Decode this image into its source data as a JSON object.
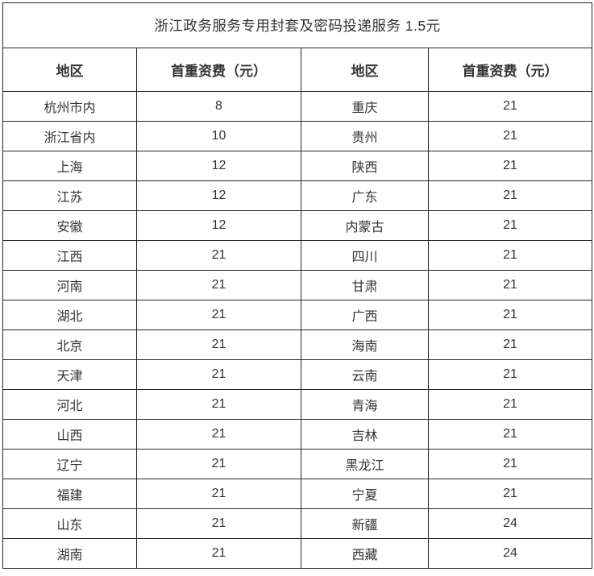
{
  "title": "浙江政务服务专用封套及密码投递服务 1.5元",
  "colors": {
    "text": "#333333",
    "border": "#262626",
    "background": "#ffffff"
  },
  "table": {
    "headers": [
      "地区",
      "首重资费（元）",
      "地区",
      "首重资费（元）"
    ],
    "rows": [
      [
        "杭州市内",
        "8",
        "重庆",
        "21"
      ],
      [
        "浙江省内",
        "10",
        "贵州",
        "21"
      ],
      [
        "上海",
        "12",
        "陕西",
        "21"
      ],
      [
        "江苏",
        "12",
        "广东",
        "21"
      ],
      [
        "安徽",
        "12",
        "内蒙古",
        "21"
      ],
      [
        "江西",
        "21",
        "四川",
        "21"
      ],
      [
        "河南",
        "21",
        "甘肃",
        "21"
      ],
      [
        "湖北",
        "21",
        "广西",
        "21"
      ],
      [
        "北京",
        "21",
        "海南",
        "21"
      ],
      [
        "天津",
        "21",
        "云南",
        "21"
      ],
      [
        "河北",
        "21",
        "青海",
        "21"
      ],
      [
        "山西",
        "21",
        "吉林",
        "21"
      ],
      [
        "辽宁",
        "21",
        "黑龙江",
        "21"
      ],
      [
        "福建",
        "21",
        "宁夏",
        "21"
      ],
      [
        "山东",
        "21",
        "新疆",
        "24"
      ],
      [
        "湖南",
        "21",
        "西藏",
        "24"
      ]
    ]
  }
}
